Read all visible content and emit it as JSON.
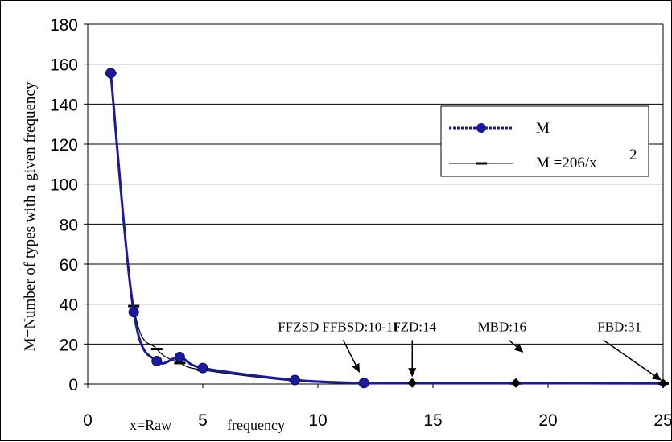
{
  "chart_data": {
    "type": "line",
    "ylabel": "M=Number of types with a given frequency",
    "xlabel_parts": [
      "x=Raw",
      "frequency"
    ],
    "xlim": [
      0,
      25
    ],
    "ylim": [
      0,
      180
    ],
    "xticks": [
      0,
      5,
      10,
      15,
      20,
      25
    ],
    "yticks": [
      0,
      20,
      40,
      60,
      80,
      100,
      120,
      140,
      160,
      180
    ],
    "grid": "horizontal",
    "legend_position": "right",
    "series": [
      {
        "name": "M",
        "color": "#1a1aa0",
        "marker": "circle",
        "x": [
          1,
          2,
          3,
          4,
          5,
          9,
          12,
          14.1,
          18.6,
          25
        ],
        "y": [
          155.5,
          36,
          11.5,
          13.5,
          8,
          2,
          0.5,
          0.5,
          0.5,
          0.3
        ]
      },
      {
        "name_main": "M =206/x",
        "name_sup": "2",
        "color": "#000000",
        "marker": "dash",
        "x": [
          1,
          2,
          3,
          4,
          5,
          9,
          12,
          14.1,
          18.6,
          25
        ],
        "y": [
          155.5,
          39,
          17.5,
          10.5,
          7,
          1.5,
          0.5,
          0.5,
          0.3,
          0.2
        ]
      }
    ],
    "diamonds": [
      {
        "x": 14.1,
        "y": 0.5
      },
      {
        "x": 18.6,
        "y": 0.5
      },
      {
        "x": 25,
        "y": 0.3
      }
    ],
    "annotations": [
      {
        "text": "FFZSD FFBSD:10-11",
        "tx": 10.9,
        "ty": 24,
        "arrow_from": [
          11.1,
          22
        ],
        "arrow_to": [
          11.8,
          6
        ]
      },
      {
        "text": "FZD:14",
        "tx": 14.2,
        "ty": 24,
        "arrow_from": [
          14.1,
          22
        ],
        "arrow_to": [
          14.1,
          4
        ]
      },
      {
        "text": "MBD:16",
        "tx": 18,
        "ty": 24,
        "arrow_from": [
          18.3,
          22
        ],
        "arrow_to": [
          18.9,
          16
        ]
      },
      {
        "text": "FBD:31",
        "tx": 23.1,
        "ty": 24,
        "arrow_from": [
          22.4,
          22
        ],
        "arrow_to": [
          24.9,
          2
        ]
      }
    ]
  }
}
